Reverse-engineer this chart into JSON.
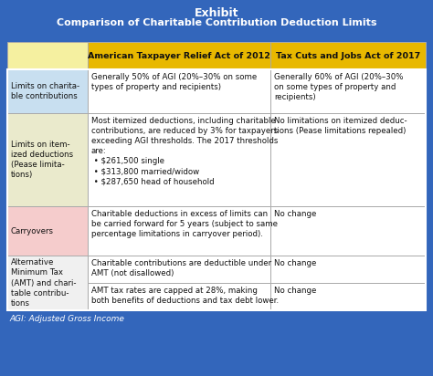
{
  "title_line1": "Exhibit",
  "title_line2": "Comparison of Charitable Contribution Deduction Limits",
  "bg_color": "#3366BB",
  "col_headers": [
    "American Taxpayer Relief Act of 2012",
    "Tax Cuts and Jobs Act of 2017"
  ],
  "rows": [
    {
      "label": "Limits on charita-\nble contributions",
      "label_bg": "#C8DFF0",
      "col1": "Generally 50% of AGI (20%–30% on some\ntypes of property and recipients)",
      "col2": "Generally 60% of AGI (20%–30%\non some types of property and\nrecipients)"
    },
    {
      "label": "Limits on item-\nized deductions\n(Pease limita-\ntions)",
      "label_bg": "#EAEACC",
      "col1": "Most itemized deductions, including charitable\ncontributions, are reduced by 3% for taxpayers\nexceeding AGI thresholds. The 2017 thresholds\nare:\n • $261,500 single\n • $313,800 married/widow\n • $287,650 head of household",
      "col2": "No limitations on itemized deduc-\ntions (Pease limitations repealed)"
    },
    {
      "label": "Carryovers",
      "label_bg": "#F5CCCC",
      "col1": "Charitable deductions in excess of limits can\nbe carried forward for 5 years (subject to same\npercentage limitations in carryover period).",
      "col2": "No change"
    },
    {
      "label": "Alternative\nMinimum Tax\n(AMT) and chari-\ntable contribu-\ntions",
      "label_bg": "#F0F0F0",
      "col1": "Charitable contributions are deductible under\nAMT (not disallowed)",
      "col2": "No change",
      "sub_col1": "AMT tax rates are capped at 28%, making\nboth benefits of deductions and tax debt lower.",
      "sub_col2": "No change"
    }
  ],
  "footnote": "AGI: Adjusted Gross Income",
  "title_color": "#FFFFFF",
  "cell_text_color": "#111111",
  "border_color": "#AAAAAA",
  "header_yellow": "#F0D020",
  "header_gold": "#E8B800"
}
